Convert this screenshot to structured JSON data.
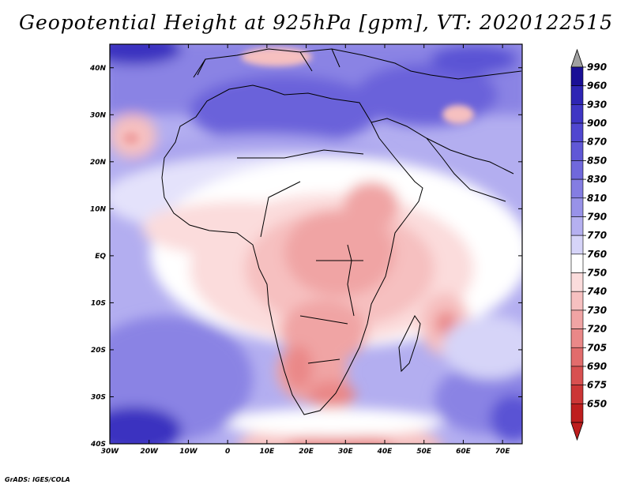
{
  "title": "Geopotential Height at 925hPa [gpm], VT: 2020122515",
  "credit": "GrADS: IGES/COLA",
  "map": {
    "region": "Africa",
    "lon_range": [
      -30,
      75
    ],
    "lat_range": [
      -40,
      45
    ],
    "lon_ticks": [
      "30W",
      "20W",
      "10W",
      "0",
      "10E",
      "20E",
      "30E",
      "40E",
      "50E",
      "60E",
      "70E"
    ],
    "lat_ticks": [
      "40N",
      "30N",
      "20N",
      "10N",
      "EQ",
      "10S",
      "20S",
      "30S",
      "40S"
    ]
  },
  "colorbar": {
    "levels": [
      "990",
      "960",
      "930",
      "900",
      "870",
      "850",
      "830",
      "810",
      "790",
      "770",
      "760",
      "750",
      "740",
      "730",
      "720",
      "705",
      "690",
      "675",
      "650"
    ],
    "colors": [
      "#1a0f96",
      "#2e25b4",
      "#3f36c4",
      "#5047d0",
      "#6058d6",
      "#7068dc",
      "#847de2",
      "#9892e8",
      "#b5b0f0",
      "#d6d4f8",
      "#ffffff",
      "#fbdcdc",
      "#f6c0c0",
      "#f0a4a4",
      "#ea8888",
      "#e26c6c",
      "#d85050",
      "#cc3636",
      "#be1e1e"
    ]
  }
}
